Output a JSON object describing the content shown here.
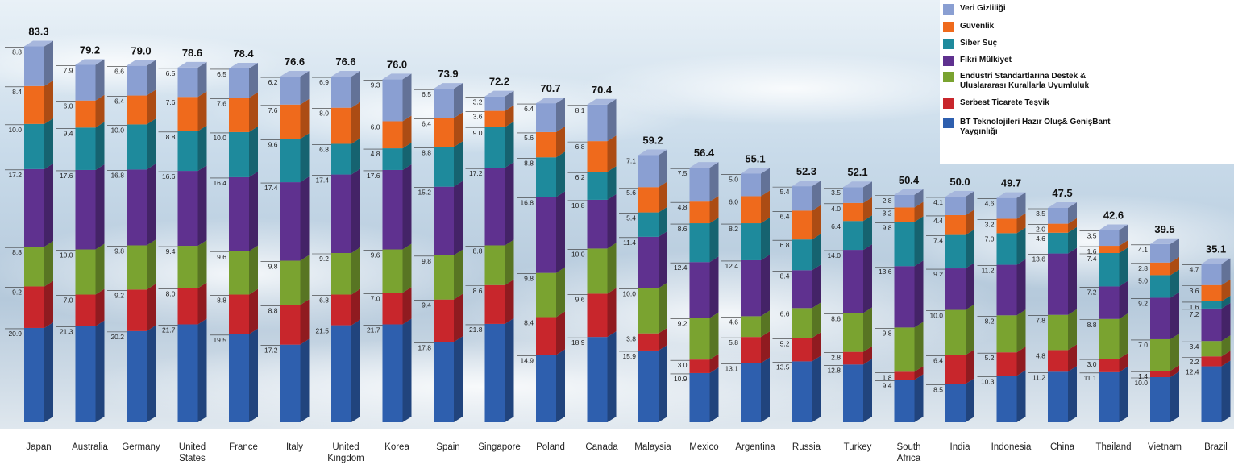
{
  "chart_data": {
    "type": "bar",
    "stacked": true,
    "categories": [
      "Japan",
      "Australia",
      "Germany",
      "United States",
      "France",
      "Italy",
      "United Kingdom",
      "Korea",
      "Spain",
      "Singapore",
      "Poland",
      "Canada",
      "Malaysia",
      "Mexico",
      "Argentina",
      "Russia",
      "Turkey",
      "South Africa",
      "India",
      "Indonesia",
      "China",
      "Thailand",
      "Vietnam",
      "Brazil"
    ],
    "totals": [
      "83.3",
      "79.2",
      "79.0",
      "78.6",
      "78.4",
      "76.6",
      "76.6",
      "76.0",
      "73.9",
      "72.2",
      "70.7",
      "70.4",
      "59.2",
      "56.4",
      "55.1",
      "52.3",
      "52.1",
      "50.4",
      "50.0",
      "49.7",
      "47.5",
      "42.6",
      "39.5",
      "35.1"
    ],
    "series": [
      {
        "name": "BT Teknolojileri Hazır Oluş& GenişBant Yaygınlığı",
        "color": "#2e5fae",
        "values": [
          20.9,
          21.3,
          20.2,
          21.7,
          19.5,
          17.2,
          21.5,
          21.7,
          17.8,
          21.8,
          14.9,
          18.9,
          15.9,
          10.9,
          13.1,
          13.5,
          12.8,
          9.4,
          8.5,
          10.3,
          11.2,
          11.1,
          10.0,
          12.4
        ]
      },
      {
        "name": "Serbest Ticarete Teşvik",
        "color": "#c8262c",
        "values": [
          9.2,
          7.0,
          9.2,
          8.0,
          8.8,
          8.8,
          6.8,
          7.0,
          9.4,
          8.6,
          8.4,
          9.6,
          3.8,
          3.0,
          5.8,
          5.2,
          2.8,
          1.8,
          6.4,
          5.2,
          4.8,
          3.0,
          1.4,
          2.2
        ]
      },
      {
        "name": "Endüstri Standartlarına Destek & Uluslararası Kurallarla Uyumluluk",
        "color": "#7aa330",
        "values": [
          8.8,
          10.0,
          9.8,
          9.4,
          9.6,
          9.8,
          9.2,
          9.6,
          9.8,
          8.8,
          9.8,
          10.0,
          10.0,
          9.2,
          4.6,
          6.6,
          8.6,
          9.8,
          10.0,
          8.2,
          7.8,
          8.8,
          7.0,
          3.4
        ]
      },
      {
        "name": "Fikri Mülkiyet",
        "color": "#5f318f",
        "values": [
          17.2,
          17.6,
          16.8,
          16.6,
          16.4,
          17.4,
          17.4,
          17.6,
          15.2,
          17.2,
          16.8,
          10.8,
          11.4,
          12.4,
          12.4,
          8.4,
          14.0,
          13.6,
          9.2,
          11.2,
          13.6,
          7.2,
          9.2,
          7.2
        ]
      },
      {
        "name": "Siber Suç",
        "color": "#1e8a9c",
        "values": [
          10.0,
          9.4,
          10.0,
          8.8,
          10.0,
          9.6,
          6.8,
          4.8,
          8.8,
          9.0,
          8.8,
          6.2,
          5.4,
          8.6,
          8.2,
          6.8,
          6.4,
          9.8,
          7.4,
          7.0,
          4.6,
          7.4,
          5.0,
          1.6
        ]
      },
      {
        "name": "Güvenlik",
        "color": "#ef6a1c",
        "values": [
          8.4,
          6.0,
          6.4,
          7.6,
          7.6,
          7.6,
          8.0,
          6.0,
          6.4,
          3.6,
          5.6,
          6.8,
          5.6,
          4.8,
          6.0,
          6.4,
          4.0,
          3.2,
          4.4,
          3.2,
          2.0,
          1.6,
          2.8,
          3.6
        ]
      },
      {
        "name": "Veri Gizliliği",
        "color": "#8a9fd2",
        "values": [
          8.8,
          7.9,
          6.6,
          6.5,
          6.5,
          6.2,
          6.9,
          9.3,
          6.5,
          3.2,
          6.4,
          8.1,
          7.1,
          7.5,
          5.0,
          5.4,
          3.5,
          2.8,
          4.1,
          4.6,
          3.5,
          3.5,
          4.1,
          4.7
        ]
      }
    ],
    "segment_labels": [
      [
        "20.9",
        "21.3",
        "20.2",
        "21.7",
        "19.5",
        "17.2",
        "21.5",
        "21.7",
        "17.8",
        "21.8",
        "14.9",
        "18.9",
        "15.9",
        "10.9",
        "13.1",
        "13.5",
        "12.8",
        "9.4",
        "8.5",
        "10.3",
        "11.2",
        "11.1",
        "10.0",
        "12.4"
      ],
      [
        "9.2",
        "7.0",
        "9.2",
        "8.0",
        "8.8",
        "8.8",
        "6.8",
        "7.0",
        "9.4",
        "8.6",
        "8.4",
        "9.6",
        "3.8",
        "3.0",
        "5.8",
        "5.2",
        "2.8",
        "1.8",
        "6.4",
        "5.2",
        "4.8",
        "3.0",
        "1.4",
        "2.2"
      ],
      [
        "8.8",
        "10.0",
        "9.8",
        "9.4",
        "9.6",
        "9.8",
        "9.2",
        "9.6",
        "9.8",
        "8.8",
        "9.8",
        "10.0",
        "10.0",
        "9.2",
        "4.6",
        "6.6",
        "8.6",
        "9.8",
        "10.0",
        "8.2",
        "7.8",
        "8.8",
        "7.0",
        "3.4"
      ],
      [
        "17.2",
        "17.6",
        "16.8",
        "16.6",
        "16.4",
        "17.4",
        "17.4",
        "17.6",
        "15.2",
        "17.2",
        "16.8",
        "10.8",
        "11.4",
        "12.4",
        "12.4",
        "8.4",
        "14.0",
        "13.6",
        "9.2",
        "11.2",
        "13.6",
        "7.2",
        "9.2",
        "7.2"
      ],
      [
        "10.0",
        "9.4",
        "10.0",
        "8.8",
        "10.0",
        "9.6",
        "6.8",
        "4.8",
        "8.8",
        "9.0",
        "8.8",
        "6.2",
        "5.4",
        "8.6",
        "8.2",
        "6.8",
        "6.4",
        "9.8",
        "7.4",
        "7.0",
        "4.6",
        "7.4",
        "5.0",
        "1.6"
      ],
      [
        "8.4",
        "6.0",
        "6.4",
        "7.6",
        "7.6",
        "7.6",
        "8.0",
        "6.0",
        "6.4",
        "3.6",
        "5.6",
        "6.8",
        "5.6",
        "4.8",
        "6.0",
        "6.4",
        "4.0",
        "3.2",
        "4.4",
        "3.2",
        "2.0",
        "1.6",
        "2.8",
        "3.6"
      ],
      [
        "8.8",
        "7.9",
        "6.6",
        "6.5",
        "6.5",
        "6.2",
        "6.9",
        "9.3",
        "6.5",
        "3.2",
        "6.4",
        "8.1",
        "7.1",
        "7.5",
        "5.0",
        "5.4",
        "3.5",
        "2.8",
        "4.1",
        "4.6",
        "3.5",
        "3.5",
        "4.1",
        "4.7"
      ]
    ],
    "legend_order": [
      "Veri Gizliliği",
      "Güvenlik",
      "Siber Suç",
      "Fikri Mülkiyet",
      "Endüstri Standartlarına Destek & Uluslararası Kurallarla Uyumluluk",
      "Serbest Ticarete Teşvik",
      "BT Teknolojileri Hazır Oluş& GenişBant Yaygınlığı"
    ],
    "legend_position": "top-right",
    "grid": false,
    "xlabel": "",
    "ylabel": "",
    "ylim": [
      0,
      83.3
    ]
  }
}
